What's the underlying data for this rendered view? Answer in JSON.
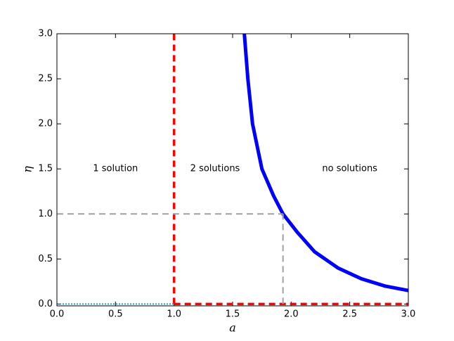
{
  "chart_data": {
    "type": "line",
    "xlabel": "a",
    "ylabel": "η",
    "xlim": [
      0,
      3
    ],
    "ylim": [
      -0.02,
      3
    ],
    "xticks": [
      {
        "value": 0,
        "label": "0.0"
      },
      {
        "value": 0.5,
        "label": "0.5"
      },
      {
        "value": 1,
        "label": "1.0"
      },
      {
        "value": 1.5,
        "label": "1.5"
      },
      {
        "value": 2,
        "label": "2.0"
      },
      {
        "value": 2.5,
        "label": "2.5"
      },
      {
        "value": 3,
        "label": "3.0"
      }
    ],
    "yticks": [
      {
        "value": 0,
        "label": "0.0"
      },
      {
        "value": 0.5,
        "label": "0.5"
      },
      {
        "value": 1,
        "label": "1.0"
      },
      {
        "value": 1.5,
        "label": "1.5"
      },
      {
        "value": 2,
        "label": "2.0"
      },
      {
        "value": 2.5,
        "label": "2.5"
      },
      {
        "value": 3,
        "label": "3.0"
      }
    ],
    "series": [
      {
        "color": "#0000ff",
        "style": "solid",
        "width": 5,
        "x": [
          1.6,
          1.63,
          1.67,
          1.75,
          1.85,
          1.93,
          2.05,
          2.2,
          2.4,
          2.6,
          2.8,
          3.0
        ],
        "values": [
          3.0,
          2.5,
          2.0,
          1.5,
          1.2,
          1.0,
          0.8,
          0.58,
          0.4,
          0.28,
          0.2,
          0.15
        ]
      },
      {
        "color": "#ff0000",
        "style": "dashed",
        "width": 3.5,
        "x": [
          1,
          1
        ],
        "values": [
          0,
          3
        ]
      },
      {
        "color": "#ff0000",
        "style": "dashed",
        "width": 3.5,
        "x": [
          1,
          3
        ],
        "values": [
          0,
          0
        ]
      },
      {
        "color": "#a0a0a0",
        "style": "dashed",
        "width": 2,
        "x": [
          0,
          1.93
        ],
        "values": [
          1,
          1
        ]
      },
      {
        "color": "#a0a0a0",
        "style": "dashed",
        "width": 2,
        "x": [
          1.93,
          1.93
        ],
        "values": [
          0,
          1
        ]
      },
      {
        "color": "#2aa0b0",
        "style": "dotted",
        "width": 2,
        "x": [
          0,
          1
        ],
        "values": [
          0,
          0
        ]
      }
    ],
    "annotations": [
      {
        "text": "1 solution",
        "x": 0.5,
        "y": 1.5
      },
      {
        "text": "2 solutions",
        "x": 1.35,
        "y": 1.5
      },
      {
        "text": "no solutions",
        "x": 2.5,
        "y": 1.5
      }
    ]
  }
}
